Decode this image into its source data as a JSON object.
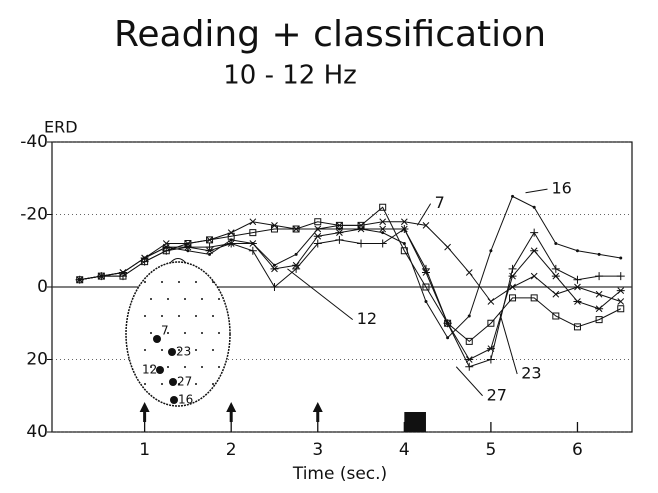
{
  "chart_data": {
    "type": "line",
    "title": "Reading + classification",
    "subtitle": "10 - 12 Hz",
    "y_label": "ERD",
    "x_label": "Time (sec.)",
    "x": [
      0.25,
      0.5,
      0.75,
      1,
      1.25,
      1.5,
      1.75,
      2,
      2.25,
      2.5,
      2.75,
      3,
      3.25,
      3.5,
      3.75,
      4,
      4.25,
      4.5,
      4.75,
      5,
      5.25,
      5.5,
      5.75,
      6,
      6.25,
      6.5
    ],
    "series": [
      {
        "name": "7",
        "color": "#111111",
        "marker": "x",
        "values": [
          -2,
          -3,
          -4,
          -8,
          -12,
          -12,
          -13,
          -15,
          -18,
          -17,
          -16,
          -16,
          -17,
          -17,
          -18,
          -18,
          -17,
          -11,
          -4,
          4,
          0,
          -3,
          2,
          0,
          2,
          4
        ]
      },
      {
        "name": "12",
        "color": "#111111",
        "marker": "plus",
        "values": [
          -2,
          -3,
          -3,
          -7,
          -10,
          -11,
          -11,
          -12,
          -10,
          0,
          -5,
          -12,
          -13,
          -12,
          -12,
          -16,
          -5,
          10,
          22,
          20,
          -5,
          -15,
          -5,
          -2,
          -3,
          -3
        ]
      },
      {
        "name": "16",
        "color": "#111111",
        "marker": "dot",
        "values": [
          -2,
          -3,
          -4,
          -8,
          -11,
          -10,
          -9,
          -13,
          -12,
          -6,
          -9,
          -16,
          -16,
          -16,
          -15,
          -12,
          4,
          14,
          8,
          -10,
          -25,
          -22,
          -12,
          -10,
          -9,
          -8
        ]
      },
      {
        "name": "23",
        "color": "#111111",
        "marker": "square",
        "values": [
          -2,
          -3,
          -3,
          -7,
          -10,
          -12,
          -13,
          -14,
          -15,
          -16,
          -16,
          -18,
          -17,
          -17,
          -22,
          -10,
          0,
          10,
          15,
          10,
          3,
          3,
          8,
          11,
          9,
          6
        ]
      },
      {
        "name": "27",
        "color": "#111111",
        "marker": "star",
        "values": [
          -2,
          -3,
          -4,
          -8,
          -11,
          -11,
          -10,
          -12,
          -12,
          -5,
          -6,
          -14,
          -15,
          -16,
          -16,
          -16,
          -4,
          10,
          20,
          17,
          -3,
          -10,
          -3,
          4,
          6,
          1
        ]
      }
    ],
    "xlim": [
      -0.07,
      6.63
    ],
    "ylim": [
      40,
      -40
    ],
    "xticks": [
      1,
      2,
      3,
      4,
      5,
      6
    ],
    "yticks": [
      -40,
      -20,
      0,
      20,
      40
    ],
    "grid": true,
    "cue_times": [
      1,
      2,
      3
    ],
    "response_window": [
      4,
      4.25
    ],
    "electrode_labels": [
      "7",
      "23",
      "12",
      "27",
      "16"
    ]
  }
}
